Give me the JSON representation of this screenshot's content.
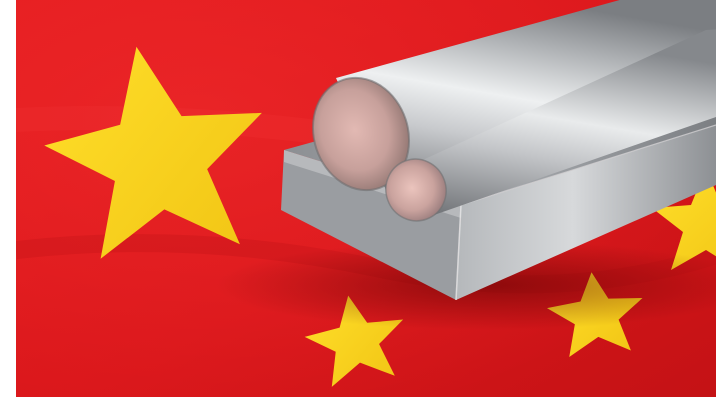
{
  "photo": {
    "subject": "steel-bars-on-flag",
    "colors": {
      "flag_red": "#e0181b",
      "flag_red_dark": "#b50f12",
      "star_yellow": "#f9d21a",
      "steel_light": "#d9dadc",
      "steel_mid": "#a9abae",
      "steel_dark": "#6f7276"
    }
  }
}
